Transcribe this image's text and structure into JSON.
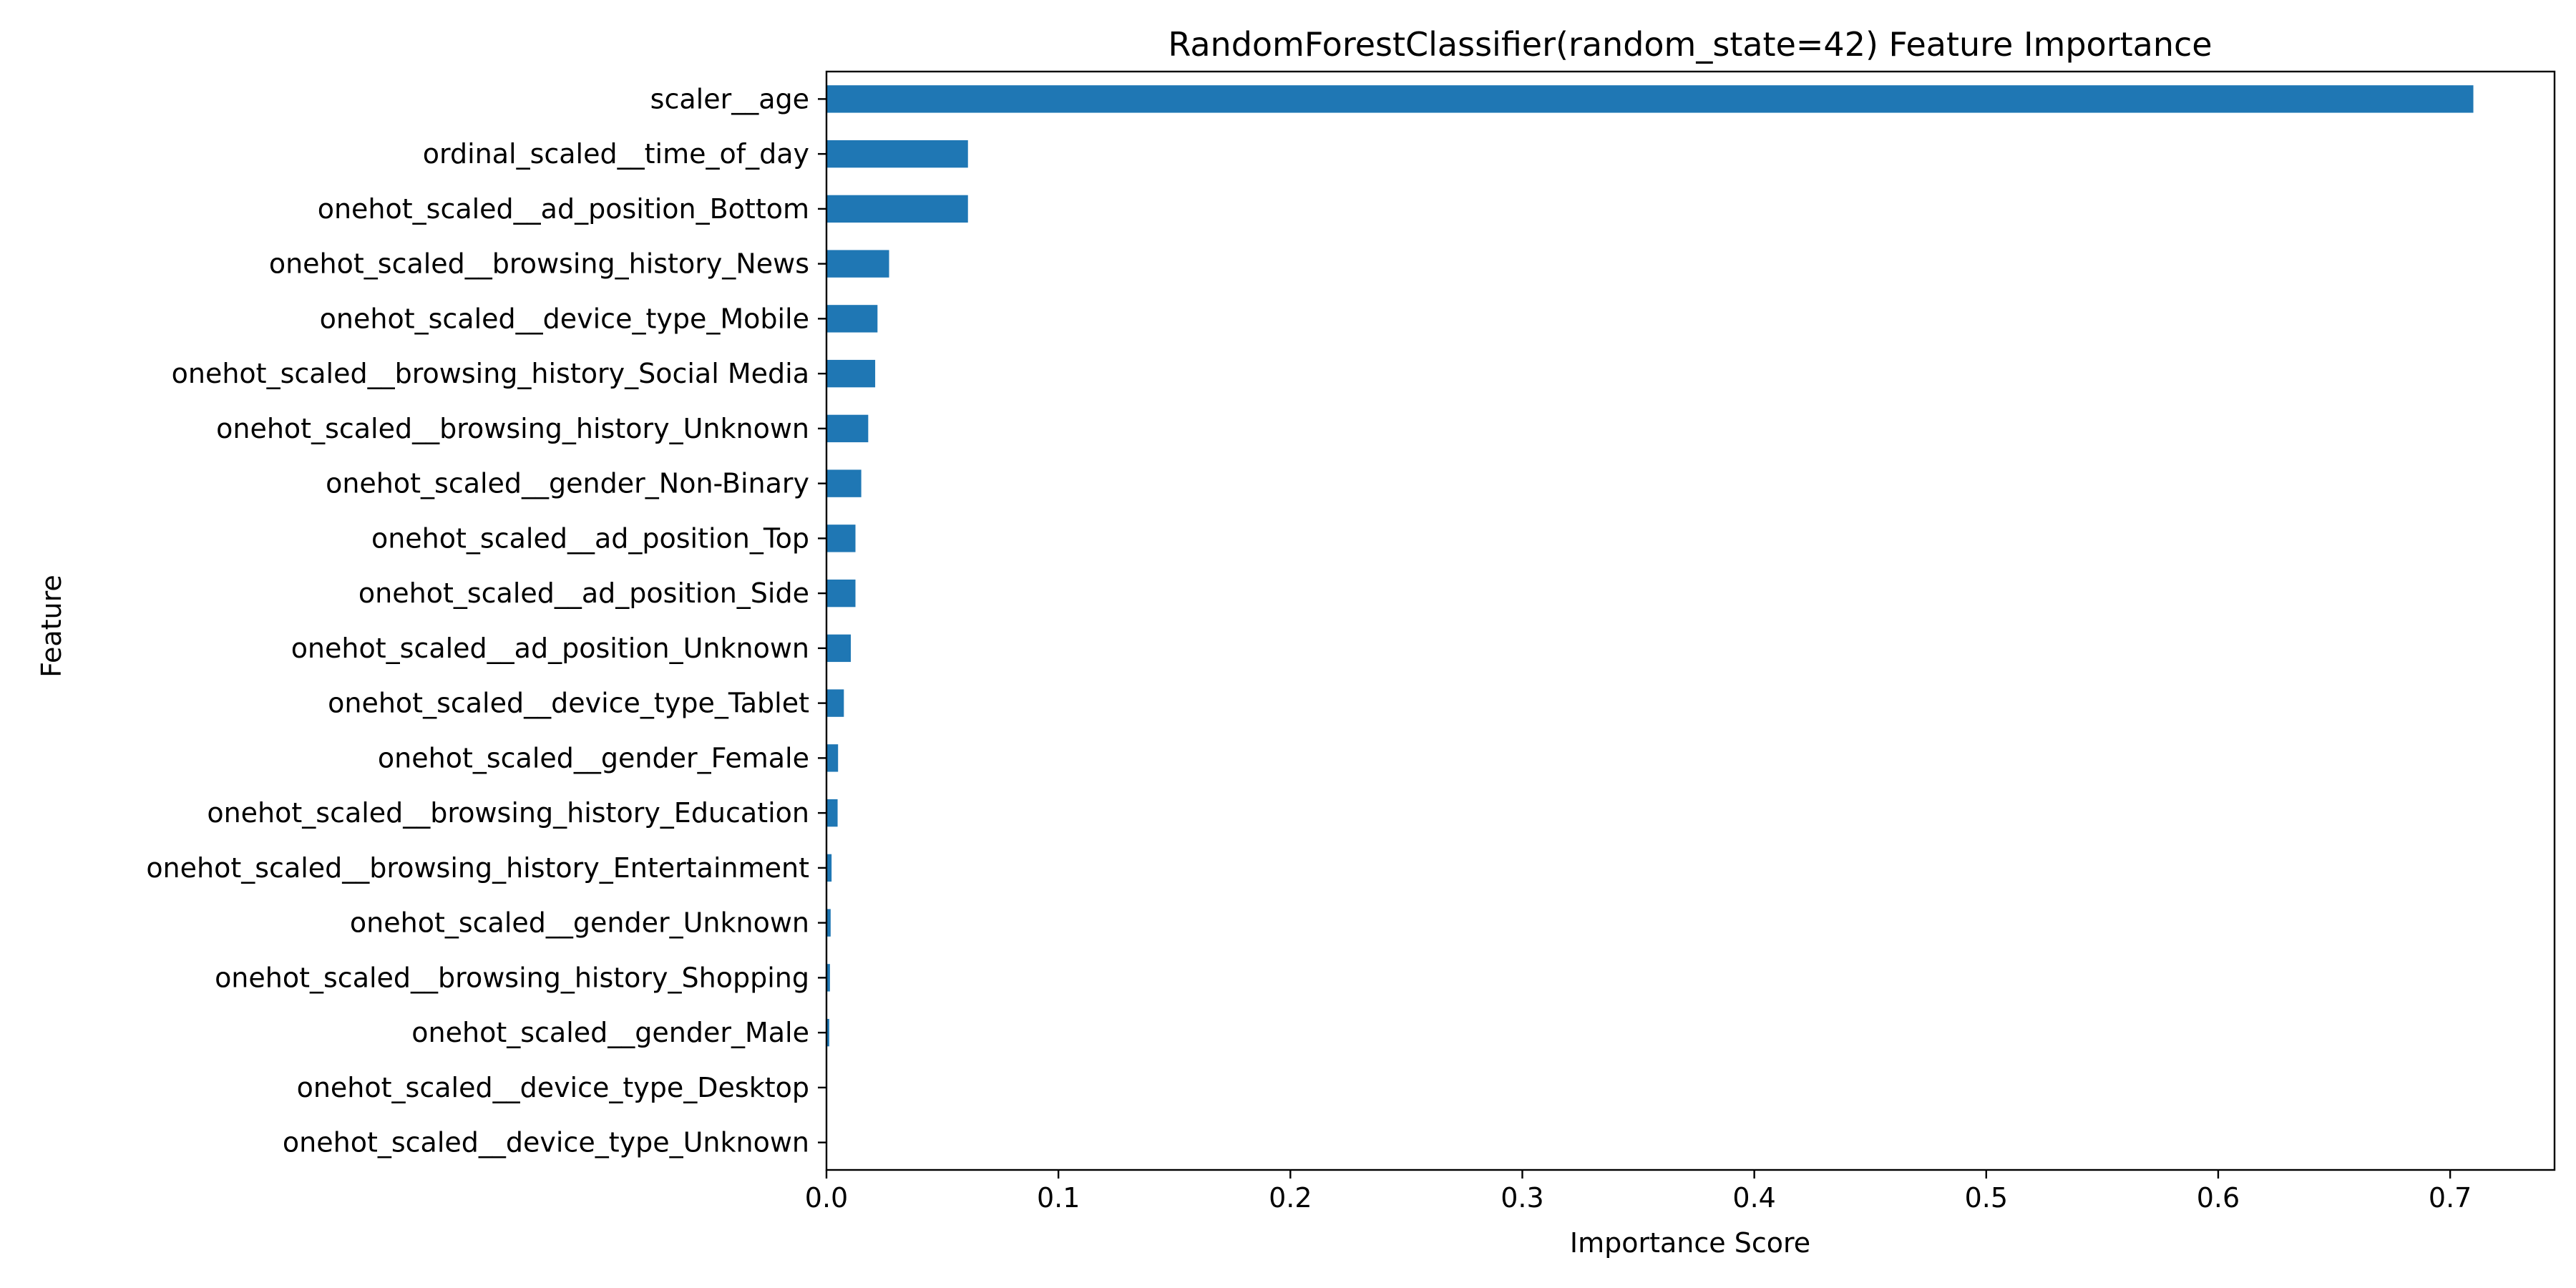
{
  "chart_data": {
    "type": "bar",
    "orientation": "horizontal",
    "title": "RandomForestClassifier(random_state=42) Feature Importance",
    "xlabel": "Importance Score",
    "ylabel": "Feature",
    "xlim": [
      0.0,
      0.745
    ],
    "xticks": [
      0.0,
      0.1,
      0.2,
      0.3,
      0.4,
      0.5,
      0.6,
      0.7
    ],
    "xtick_labels": [
      "0.0",
      "0.1",
      "0.2",
      "0.3",
      "0.4",
      "0.5",
      "0.6",
      "0.7"
    ],
    "grid": false,
    "bar_color": "#1f77b4",
    "categories": [
      "scaler__age",
      "ordinal_scaled__time_of_day",
      "onehot_scaled__ad_position_Bottom",
      "onehot_scaled__browsing_history_News",
      "onehot_scaled__device_type_Mobile",
      "onehot_scaled__browsing_history_Social Media",
      "onehot_scaled__browsing_history_Unknown",
      "onehot_scaled__gender_Non-Binary",
      "onehot_scaled__ad_position_Top",
      "onehot_scaled__ad_position_Side",
      "onehot_scaled__ad_position_Unknown",
      "onehot_scaled__device_type_Tablet",
      "onehot_scaled__gender_Female",
      "onehot_scaled__browsing_history_Education",
      "onehot_scaled__browsing_history_Entertainment",
      "onehot_scaled__gender_Unknown",
      "onehot_scaled__browsing_history_Shopping",
      "onehot_scaled__gender_Male",
      "onehot_scaled__device_type_Desktop",
      "onehot_scaled__device_type_Unknown"
    ],
    "values": [
      0.71,
      0.061,
      0.061,
      0.027,
      0.022,
      0.021,
      0.018,
      0.015,
      0.0125,
      0.0125,
      0.0105,
      0.0075,
      0.005,
      0.0048,
      0.0022,
      0.0018,
      0.0015,
      0.0012,
      0.0003,
      0.0002
    ]
  }
}
